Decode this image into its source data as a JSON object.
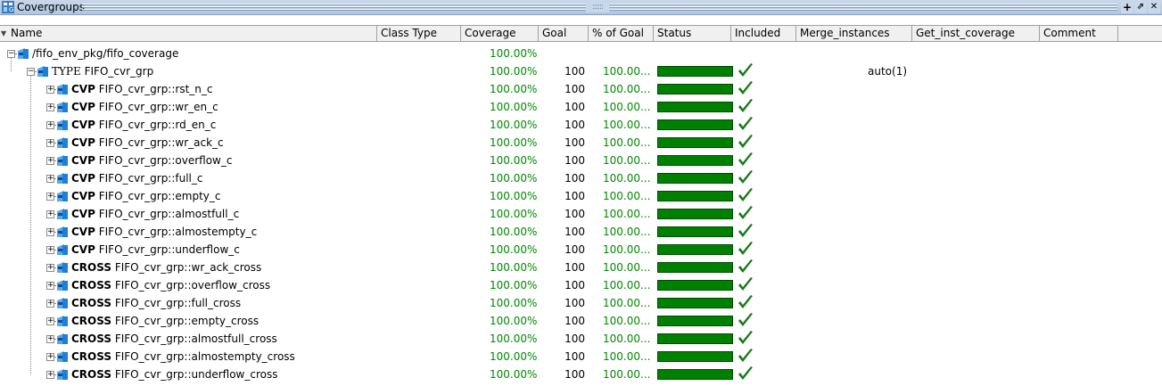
{
  "window": {
    "title": "Covergroups",
    "grip_label": "::::::",
    "buttons": {
      "add": "+",
      "undock": "⇗",
      "close": "✕"
    }
  },
  "header": {
    "sort_glyph": "▼",
    "columns": [
      "Name",
      "Class Type",
      "Coverage",
      "Goal",
      "% of Goal",
      "Status",
      "Included",
      "Merge_instances",
      "Get_inst_coverage",
      "Comment"
    ]
  },
  "rows": [
    {
      "level": 0,
      "toggle": "−",
      "keyword": "",
      "name": "/fifo_env_pkg/fifo_coverage",
      "coverage": "100.00%",
      "goal": "",
      "pct": "",
      "status_fraction": null,
      "included": false,
      "merge": ""
    },
    {
      "level": 1,
      "toggle": "−",
      "keyword": "TYPE",
      "name": "FIFO_cvr_grp",
      "coverage": "100.00%",
      "goal": "100",
      "pct": "100.00...",
      "status_fraction": 1.0,
      "included": true,
      "merge": "auto(1)"
    },
    {
      "level": 2,
      "toggle": "+",
      "keyword": "CVP",
      "name": "FIFO_cvr_grp::rst_n_c",
      "coverage": "100.00%",
      "goal": "100",
      "pct": "100.00...",
      "status_fraction": 1.0,
      "included": true,
      "merge": ""
    },
    {
      "level": 2,
      "toggle": "+",
      "keyword": "CVP",
      "name": "FIFO_cvr_grp::wr_en_c",
      "coverage": "100.00%",
      "goal": "100",
      "pct": "100.00...",
      "status_fraction": 1.0,
      "included": true,
      "merge": ""
    },
    {
      "level": 2,
      "toggle": "+",
      "keyword": "CVP",
      "name": "FIFO_cvr_grp::rd_en_c",
      "coverage": "100.00%",
      "goal": "100",
      "pct": "100.00...",
      "status_fraction": 1.0,
      "included": true,
      "merge": ""
    },
    {
      "level": 2,
      "toggle": "+",
      "keyword": "CVP",
      "name": "FIFO_cvr_grp::wr_ack_c",
      "coverage": "100.00%",
      "goal": "100",
      "pct": "100.00...",
      "status_fraction": 1.0,
      "included": true,
      "merge": ""
    },
    {
      "level": 2,
      "toggle": "+",
      "keyword": "CVP",
      "name": "FIFO_cvr_grp::overflow_c",
      "coverage": "100.00%",
      "goal": "100",
      "pct": "100.00...",
      "status_fraction": 1.0,
      "included": true,
      "merge": ""
    },
    {
      "level": 2,
      "toggle": "+",
      "keyword": "CVP",
      "name": "FIFO_cvr_grp::full_c",
      "coverage": "100.00%",
      "goal": "100",
      "pct": "100.00...",
      "status_fraction": 1.0,
      "included": true,
      "merge": ""
    },
    {
      "level": 2,
      "toggle": "+",
      "keyword": "CVP",
      "name": "FIFO_cvr_grp::empty_c",
      "coverage": "100.00%",
      "goal": "100",
      "pct": "100.00...",
      "status_fraction": 1.0,
      "included": true,
      "merge": ""
    },
    {
      "level": 2,
      "toggle": "+",
      "keyword": "CVP",
      "name": "FIFO_cvr_grp::almostfull_c",
      "coverage": "100.00%",
      "goal": "100",
      "pct": "100.00...",
      "status_fraction": 1.0,
      "included": true,
      "merge": ""
    },
    {
      "level": 2,
      "toggle": "+",
      "keyword": "CVP",
      "name": "FIFO_cvr_grp::almostempty_c",
      "coverage": "100.00%",
      "goal": "100",
      "pct": "100.00...",
      "status_fraction": 1.0,
      "included": true,
      "merge": ""
    },
    {
      "level": 2,
      "toggle": "+",
      "keyword": "CVP",
      "name": "FIFO_cvr_grp::underflow_c",
      "coverage": "100.00%",
      "goal": "100",
      "pct": "100.00...",
      "status_fraction": 1.0,
      "included": true,
      "merge": ""
    },
    {
      "level": 2,
      "toggle": "+",
      "keyword": "CROSS",
      "name": "FIFO_cvr_grp::wr_ack_cross",
      "coverage": "100.00%",
      "goal": "100",
      "pct": "100.00...",
      "status_fraction": 1.0,
      "included": true,
      "merge": ""
    },
    {
      "level": 2,
      "toggle": "+",
      "keyword": "CROSS",
      "name": "FIFO_cvr_grp::overflow_cross",
      "coverage": "100.00%",
      "goal": "100",
      "pct": "100.00...",
      "status_fraction": 1.0,
      "included": true,
      "merge": ""
    },
    {
      "level": 2,
      "toggle": "+",
      "keyword": "CROSS",
      "name": "FIFO_cvr_grp::full_cross",
      "coverage": "100.00%",
      "goal": "100",
      "pct": "100.00...",
      "status_fraction": 1.0,
      "included": true,
      "merge": ""
    },
    {
      "level": 2,
      "toggle": "+",
      "keyword": "CROSS",
      "name": "FIFO_cvr_grp::empty_cross",
      "coverage": "100.00%",
      "goal": "100",
      "pct": "100.00...",
      "status_fraction": 1.0,
      "included": true,
      "merge": ""
    },
    {
      "level": 2,
      "toggle": "+",
      "keyword": "CROSS",
      "name": "FIFO_cvr_grp::almostfull_cross",
      "coverage": "100.00%",
      "goal": "100",
      "pct": "100.00...",
      "status_fraction": 1.0,
      "included": true,
      "merge": ""
    },
    {
      "level": 2,
      "toggle": "+",
      "keyword": "CROSS",
      "name": "FIFO_cvr_grp::almostempty_cross",
      "coverage": "100.00%",
      "goal": "100",
      "pct": "100.00...",
      "status_fraction": 1.0,
      "included": true,
      "merge": ""
    },
    {
      "level": 2,
      "toggle": "+",
      "keyword": "CROSS",
      "name": "FIFO_cvr_grp::underflow_cross",
      "coverage": "100.00%",
      "goal": "100",
      "pct": "100.00...",
      "status_fraction": 1.0,
      "included": true,
      "merge": ""
    }
  ],
  "colors": {
    "coverage_text": "#008800",
    "status_bar": "#008000",
    "check": "#1a7a1a",
    "icon_blue": "#1f7fd6"
  },
  "icons": {
    "window": "covergroup-icon",
    "node": "covergroup-node-icon",
    "check": "checkmark-icon"
  }
}
